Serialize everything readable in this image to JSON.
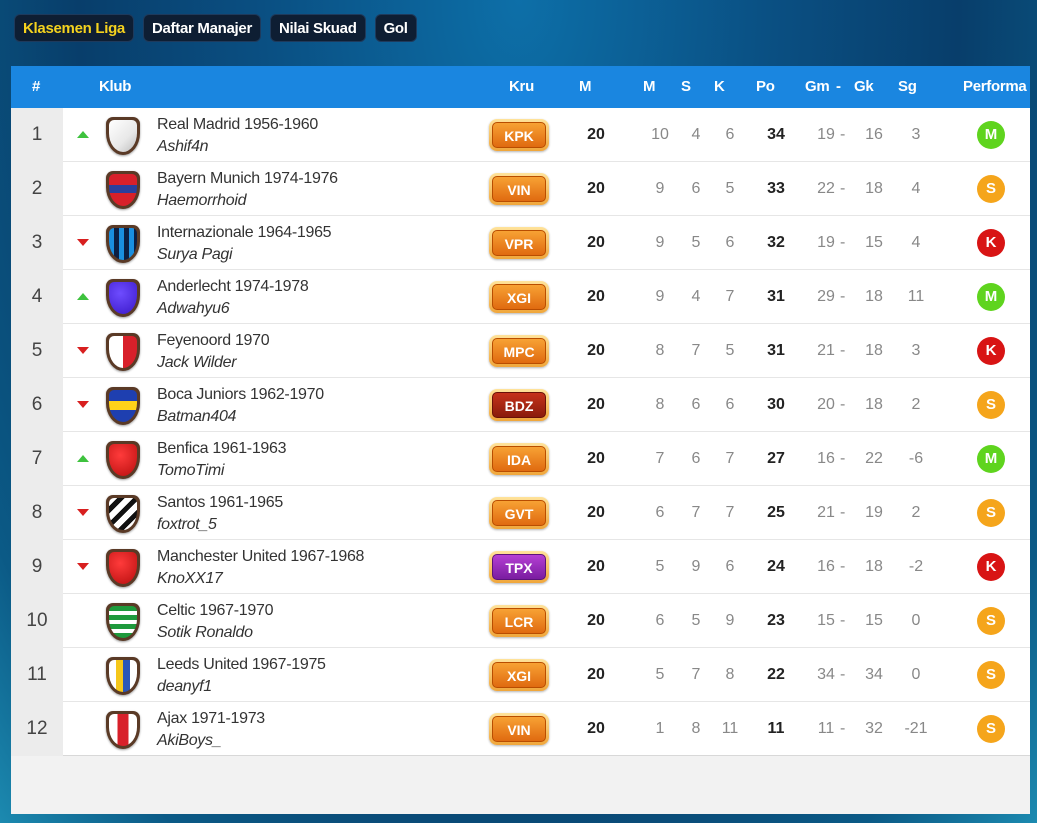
{
  "tabs": [
    {
      "label": "Klasemen Liga",
      "active": true
    },
    {
      "label": "Daftar Manajer",
      "active": false
    },
    {
      "label": "Nilai Skuad",
      "active": false
    },
    {
      "label": "Gol",
      "active": false
    }
  ],
  "header": {
    "rank": "#",
    "club": "Klub",
    "crew": "Kru",
    "played": "M",
    "win": "M",
    "draw": "S",
    "loss": "K",
    "points": "Po",
    "gf": "Gm",
    "sep": "-",
    "ga": "Gk",
    "gd": "Sg",
    "form": "Performa"
  },
  "colors": {
    "header_bg": "#1a86e0",
    "active_tab": "#f5d21e",
    "trend_up": "#3ec23e",
    "trend_down": "#d81f1f",
    "perf_M": "#5fd41e",
    "perf_S": "#f5a51b",
    "perf_K": "#d81414"
  },
  "rows": [
    {
      "rank": "1",
      "trend": "up",
      "club": "Real Madrid 1956-1960",
      "manager": "Ashif4n",
      "crew": "KPK",
      "crew_style": "orange",
      "shield": "white",
      "played": "20",
      "w": "10",
      "d": "4",
      "l": "6",
      "pts": "34",
      "gf": "19",
      "ga": "16",
      "gd": "3",
      "form": "M"
    },
    {
      "rank": "2",
      "trend": "none",
      "club": "Bayern Munich 1974-1976",
      "manager": "Haemorrhoid",
      "crew": "VIN",
      "crew_style": "orange",
      "shield": "bayern",
      "played": "20",
      "w": "9",
      "d": "6",
      "l": "5",
      "pts": "33",
      "gf": "22",
      "ga": "18",
      "gd": "4",
      "form": "S"
    },
    {
      "rank": "3",
      "trend": "down",
      "club": "Internazionale 1964-1965",
      "manager": "Surya Pagi",
      "crew": "VPR",
      "crew_style": "orange",
      "shield": "inter",
      "played": "20",
      "w": "9",
      "d": "5",
      "l": "6",
      "pts": "32",
      "gf": "19",
      "ga": "15",
      "gd": "4",
      "form": "K"
    },
    {
      "rank": "4",
      "trend": "up",
      "club": "Anderlecht 1974-1978",
      "manager": "Adwahyu6",
      "crew": "XGI",
      "crew_style": "orange",
      "shield": "purple",
      "played": "20",
      "w": "9",
      "d": "4",
      "l": "7",
      "pts": "31",
      "gf": "29",
      "ga": "18",
      "gd": "11",
      "form": "M"
    },
    {
      "rank": "5",
      "trend": "down",
      "club": "Feyenoord 1970",
      "manager": "Jack Wilder",
      "crew": "MPC",
      "crew_style": "orange",
      "shield": "feyenoord",
      "played": "20",
      "w": "8",
      "d": "7",
      "l": "5",
      "pts": "31",
      "gf": "21",
      "ga": "18",
      "gd": "3",
      "form": "K"
    },
    {
      "rank": "6",
      "trend": "down",
      "club": "Boca Juniors 1962-1970",
      "manager": "Batman404",
      "crew": "BDZ",
      "crew_style": "dark",
      "shield": "boca",
      "played": "20",
      "w": "8",
      "d": "6",
      "l": "6",
      "pts": "30",
      "gf": "20",
      "ga": "18",
      "gd": "2",
      "form": "S"
    },
    {
      "rank": "7",
      "trend": "up",
      "club": "Benfica 1961-1963",
      "manager": "TomoTimi",
      "crew": "IDA",
      "crew_style": "orange",
      "shield": "red",
      "played": "20",
      "w": "7",
      "d": "6",
      "l": "7",
      "pts": "27",
      "gf": "16",
      "ga": "22",
      "gd": "-6",
      "form": "M"
    },
    {
      "rank": "8",
      "trend": "down",
      "club": "Santos 1961-1965",
      "manager": "foxtrot_5",
      "crew": "GVT",
      "crew_style": "orange",
      "shield": "santos",
      "played": "20",
      "w": "6",
      "d": "7",
      "l": "7",
      "pts": "25",
      "gf": "21",
      "ga": "19",
      "gd": "2",
      "form": "S"
    },
    {
      "rank": "9",
      "trend": "down",
      "club": "Manchester United 1967-1968",
      "manager": "KnoXX17",
      "crew": "TPX",
      "crew_style": "purple",
      "shield": "red",
      "played": "20",
      "w": "5",
      "d": "9",
      "l": "6",
      "pts": "24",
      "gf": "16",
      "ga": "18",
      "gd": "-2",
      "form": "K"
    },
    {
      "rank": "10",
      "trend": "none",
      "club": "Celtic 1967-1970",
      "manager": "Sotik Ronaldo",
      "crew": "LCR",
      "crew_style": "orange",
      "shield": "celtic",
      "played": "20",
      "w": "6",
      "d": "5",
      "l": "9",
      "pts": "23",
      "gf": "15",
      "ga": "15",
      "gd": "0",
      "form": "S"
    },
    {
      "rank": "11",
      "trend": "none",
      "club": "Leeds United 1967-1975",
      "manager": "deanyf1",
      "crew": "XGI",
      "crew_style": "orange",
      "shield": "leeds",
      "played": "20",
      "w": "5",
      "d": "7",
      "l": "8",
      "pts": "22",
      "gf": "34",
      "ga": "34",
      "gd": "0",
      "form": "S"
    },
    {
      "rank": "12",
      "trend": "none",
      "club": "Ajax 1971-1973",
      "manager": "AkiBoys_",
      "crew": "VIN",
      "crew_style": "orange",
      "shield": "ajax",
      "played": "20",
      "w": "1",
      "d": "8",
      "l": "11",
      "pts": "11",
      "gf": "11",
      "ga": "32",
      "gd": "-21",
      "form": "S"
    }
  ]
}
